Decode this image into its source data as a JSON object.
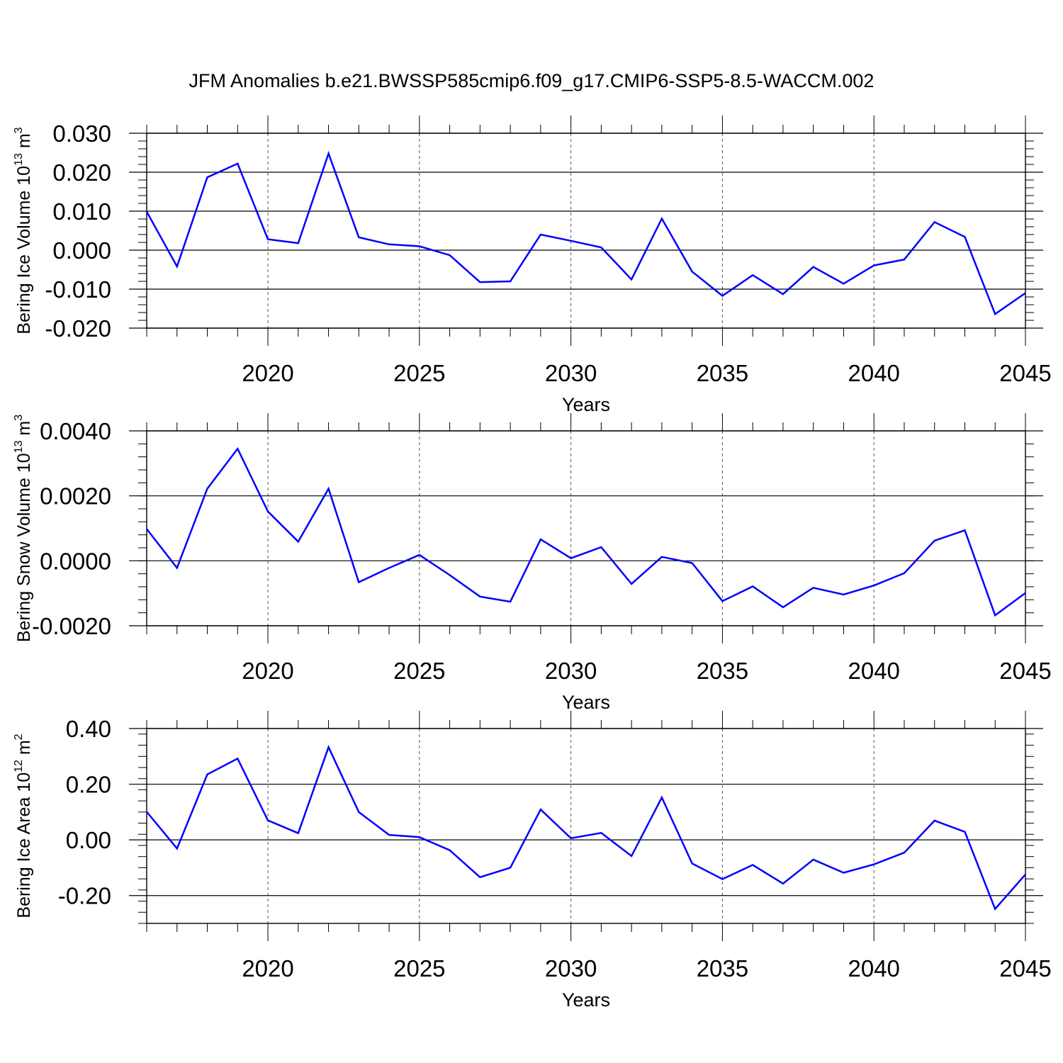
{
  "title": "JFM Anomalies b.e21.BWSSP585cmip6.f09_g17.CMIP6-SSP5-8.5-WACCM.002",
  "line_color": "#0000ff",
  "chart_data": [
    {
      "type": "line",
      "title": "JFM Anomalies b.e21.BWSSP585cmip6.f09_g17.CMIP6-SSP5-8.5-WACCM.002",
      "xlabel": "Years",
      "ylabel": {
        "text": "Bering Ice Volume 10",
        "sup": "13",
        "unit": " m",
        "unit_sup": "3"
      },
      "xlim": [
        2016,
        2045
      ],
      "ylim": [
        -0.02,
        0.03
      ],
      "xticks": [
        2020,
        2025,
        2030,
        2035,
        2040,
        2045
      ],
      "xtick_labels": [
        "2020",
        "2025",
        "2030",
        "2035",
        "2040",
        "2045"
      ],
      "yticks": [
        -0.02,
        -0.01,
        0.0,
        0.01,
        0.02,
        0.03
      ],
      "ytick_labels": [
        "-0.020",
        "-0.010",
        "0.000",
        "0.010",
        "0.020",
        "0.030"
      ],
      "grid": "dashed vertical at major x ticks",
      "x": [
        2016,
        2017,
        2018,
        2019,
        2020,
        2021,
        2022,
        2023,
        2024,
        2025,
        2026,
        2027,
        2028,
        2029,
        2030,
        2031,
        2032,
        2033,
        2034,
        2035,
        2036,
        2037,
        2038,
        2039,
        2040,
        2041,
        2042,
        2043,
        2044,
        2045
      ],
      "y": [
        0.0099,
        -0.0042,
        0.0187,
        0.0222,
        0.0028,
        0.0018,
        0.0248,
        0.0033,
        0.0015,
        0.001,
        -0.0013,
        -0.0082,
        -0.008,
        0.004,
        0.0024,
        0.0007,
        -0.0075,
        0.0081,
        -0.0055,
        -0.0117,
        -0.0064,
        -0.0113,
        -0.0043,
        -0.0086,
        -0.0039,
        -0.0024,
        0.0072,
        0.0034,
        -0.0164,
        -0.011
      ]
    },
    {
      "type": "line",
      "xlabel": "Years",
      "ylabel": {
        "text": "Bering Snow Volume 10",
        "sup": "13",
        "unit": " m",
        "unit_sup": "3"
      },
      "xlim": [
        2016,
        2045
      ],
      "ylim": [
        -0.002,
        0.004
      ],
      "xticks": [
        2020,
        2025,
        2030,
        2035,
        2040,
        2045
      ],
      "xtick_labels": [
        "2020",
        "2025",
        "2030",
        "2035",
        "2040",
        "2045"
      ],
      "yticks": [
        -0.002,
        0.0,
        0.002,
        0.004
      ],
      "ytick_labels": [
        "-0.0020",
        "0.0000",
        "0.0020",
        "0.0040"
      ],
      "grid": "dashed vertical at major x ticks",
      "x": [
        2016,
        2017,
        2018,
        2019,
        2020,
        2021,
        2022,
        2023,
        2024,
        2025,
        2026,
        2027,
        2028,
        2029,
        2030,
        2031,
        2032,
        2033,
        2034,
        2035,
        2036,
        2037,
        2038,
        2039,
        2040,
        2041,
        2042,
        2043,
        2044,
        2045
      ],
      "y": [
        0.00098,
        -0.00022,
        0.00222,
        0.00345,
        0.00152,
        0.00059,
        0.00222,
        -0.00066,
        -0.00022,
        0.00018,
        -0.00044,
        -0.0011,
        -0.00126,
        0.00066,
        8e-05,
        0.00042,
        -0.00071,
        0.00012,
        -7e-05,
        -0.00124,
        -0.00079,
        -0.00143,
        -0.00083,
        -0.00104,
        -0.00076,
        -0.00038,
        0.00062,
        0.00094,
        -0.00168,
        -0.00099
      ]
    },
    {
      "type": "line",
      "xlabel": "Years",
      "ylabel": {
        "text": "Bering Ice Area 10",
        "sup": "12",
        "unit": " m",
        "unit_sup": "2"
      },
      "xlim": [
        2016,
        2045
      ],
      "ylim": [
        -0.3,
        0.4
      ],
      "xticks": [
        2020,
        2025,
        2030,
        2035,
        2040,
        2045
      ],
      "xtick_labels": [
        "2020",
        "2025",
        "2030",
        "2035",
        "2040",
        "2045"
      ],
      "yticks": [
        -0.2,
        0.0,
        0.2,
        0.4
      ],
      "ytick_labels": [
        "-0.20",
        "0.00",
        "0.20",
        "0.40"
      ],
      "grid": "dashed vertical at major x ticks",
      "x": [
        2016,
        2017,
        2018,
        2019,
        2020,
        2021,
        2022,
        2023,
        2024,
        2025,
        2026,
        2027,
        2028,
        2029,
        2030,
        2031,
        2032,
        2033,
        2034,
        2035,
        2036,
        2037,
        2038,
        2039,
        2040,
        2041,
        2042,
        2043,
        2044,
        2045
      ],
      "y": [
        0.101,
        -0.031,
        0.235,
        0.292,
        0.07,
        0.024,
        0.333,
        0.1,
        0.018,
        0.01,
        -0.037,
        -0.134,
        -0.1,
        0.109,
        0.006,
        0.025,
        -0.058,
        0.152,
        -0.085,
        -0.141,
        -0.09,
        -0.157,
        -0.071,
        -0.118,
        -0.088,
        -0.046,
        0.069,
        0.029,
        -0.248,
        -0.124
      ]
    }
  ]
}
